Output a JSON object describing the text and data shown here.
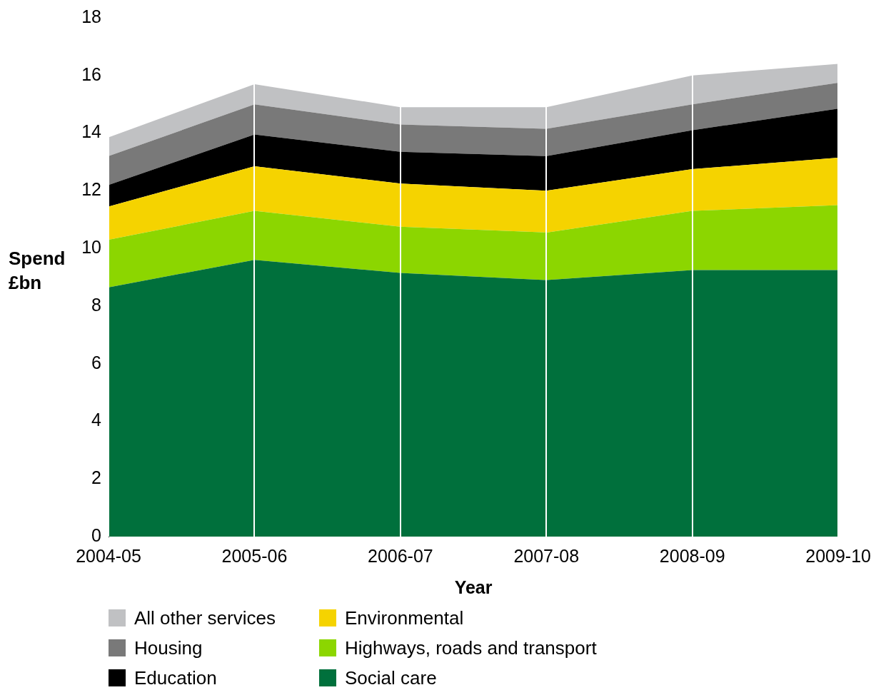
{
  "chart_data": {
    "type": "area",
    "stacked": true,
    "xlabel": "Year",
    "ylabel": "Spend £bn",
    "categories": [
      "2004-05",
      "2005-06",
      "2006-07",
      "2007-08",
      "2008-09",
      "2009-10"
    ],
    "ylim": [
      0,
      18
    ],
    "yticks": [
      0,
      2,
      4,
      6,
      8,
      10,
      12,
      14,
      16,
      18
    ],
    "grid": "x",
    "legend": "bottom",
    "series": [
      {
        "name": "Social care",
        "color": "#00703c",
        "values": [
          8.65,
          9.6,
          9.15,
          8.9,
          9.25,
          9.25
        ]
      },
      {
        "name": "Highways, roads and transport",
        "color": "#8cd600",
        "values": [
          1.65,
          1.7,
          1.6,
          1.65,
          2.05,
          2.25
        ]
      },
      {
        "name": "Environmental",
        "color": "#f5d300",
        "values": [
          1.15,
          1.55,
          1.5,
          1.45,
          1.45,
          1.65
        ]
      },
      {
        "name": "Education",
        "color": "#000000",
        "values": [
          0.75,
          1.1,
          1.1,
          1.2,
          1.35,
          1.7
        ]
      },
      {
        "name": "Housing",
        "color": "#797979",
        "values": [
          1.0,
          1.05,
          0.95,
          0.95,
          0.9,
          0.9
        ]
      },
      {
        "name": "All other services",
        "color": "#c0c1c3",
        "values": [
          0.65,
          0.7,
          0.6,
          0.75,
          1.0,
          0.65
        ]
      }
    ]
  }
}
